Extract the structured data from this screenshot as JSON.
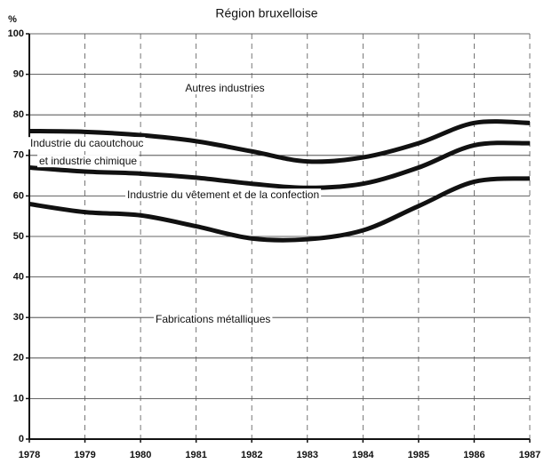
{
  "chart_data": {
    "type": "line",
    "title": "Région bruxelloise",
    "y_label": "%",
    "x": [
      1978,
      1979,
      1980,
      1981,
      1982,
      1983,
      1984,
      1985,
      1986,
      1987
    ],
    "xlim": [
      1978,
      1987
    ],
    "xticks": [
      1978,
      1979,
      1980,
      1981,
      1982,
      1983,
      1984,
      1985,
      1986,
      1987
    ],
    "ylim": [
      0,
      100
    ],
    "yticks": [
      0,
      10,
      20,
      30,
      40,
      50,
      60,
      70,
      80,
      90,
      100
    ],
    "grid": true,
    "series": [
      {
        "color": "#111111",
        "values": [
          76,
          75.8,
          75,
          73.5,
          71,
          68.5,
          69.5,
          73,
          78,
          78
        ]
      },
      {
        "color": "#111111",
        "values": [
          67,
          66,
          65.5,
          64.5,
          63,
          62,
          63,
          67,
          72.5,
          73
        ]
      },
      {
        "color": "#111111",
        "values": [
          58,
          56,
          55.2,
          52.5,
          49.5,
          49.3,
          51.5,
          57.5,
          63.5,
          64.3
        ]
      }
    ],
    "annotations": [
      "Autres industries",
      "Industrie du caoutchouc",
      "et industrie chimique",
      "Industrie du vêtement et de la confection",
      "Fabrications métalliques"
    ]
  }
}
